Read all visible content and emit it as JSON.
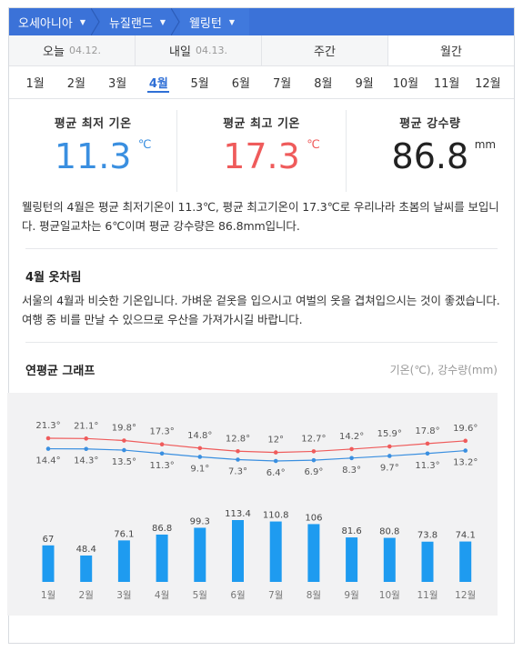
{
  "breadcrumb": [
    "오세아니아",
    "뉴질랜드",
    "웰링턴"
  ],
  "period_tabs": [
    {
      "label": "오늘",
      "date": "04.12."
    },
    {
      "label": "내일",
      "date": "04.13."
    },
    {
      "label": "주간",
      "date": ""
    },
    {
      "label": "월간",
      "date": ""
    }
  ],
  "months": [
    "1월",
    "2월",
    "3월",
    "4월",
    "5월",
    "6월",
    "7월",
    "8월",
    "9월",
    "10월",
    "11월",
    "12월"
  ],
  "selected_month": "4월",
  "stats": {
    "min": {
      "label": "평균 최저 기온",
      "value": "11.3",
      "unit": "℃"
    },
    "max": {
      "label": "평균 최고 기온",
      "value": "17.3",
      "unit": "℃"
    },
    "rain": {
      "label": "평균 강수량",
      "value": "86.8",
      "unit": "mm"
    }
  },
  "summary": "웰링턴의 4월은 평균 최저기온이 11.3℃, 평균 최고기온이 17.3℃로 우리나라 초봄의 날씨를 보입니다. 평균일교차는 6℃이며 평균 강수량은 86.8mm입니다.",
  "clothing": {
    "title": "4월 옷차림",
    "text": "서울의 4월과 비슷한 기온입니다. 가벼운 겉옷을 입으시고 여벌의 옷을 겹쳐입으시는 것이 좋겠습니다. 여행 중 비를 만날 수 있으므로 우산을 가져가시길 바랍니다."
  },
  "graph": {
    "title": "연평균 그래프",
    "units": "기온(℃), 강수량(mm)"
  },
  "colors": {
    "accent": "#3b72d8",
    "max_line": "#ef5b5b",
    "min_line": "#3a8fe0",
    "bar": "#1e9bf0"
  },
  "chart_data": {
    "type": "line",
    "categories": [
      "1월",
      "2월",
      "3월",
      "4월",
      "5월",
      "6월",
      "7월",
      "8월",
      "9월",
      "10월",
      "11월",
      "12월"
    ],
    "series": [
      {
        "values": [
          21.3,
          21.1,
          19.8,
          17.3,
          14.8,
          12.8,
          12,
          12.7,
          14.2,
          15.9,
          17.8,
          19.6
        ],
        "labels": [
          "21.3°",
          "21.1°",
          "19.8°",
          "17.3°",
          "14.8°",
          "12.8°",
          "12°",
          "12.7°",
          "14.2°",
          "15.9°",
          "17.8°",
          "19.6°"
        ]
      },
      {
        "values": [
          14.4,
          14.3,
          13.5,
          11.3,
          9.1,
          7.3,
          6.4,
          6.9,
          8.3,
          9.7,
          11.3,
          13.2
        ],
        "labels": [
          "14.4°",
          "14.3°",
          "13.5°",
          "11.3°",
          "9.1°",
          "7.3°",
          "6.4°",
          "6.9°",
          "8.3°",
          "9.7°",
          "11.3°",
          "13.2°"
        ]
      },
      {
        "type": "bar",
        "values": [
          67,
          48.4,
          76.1,
          86.8,
          99.3,
          113.4,
          110.8,
          106,
          81.6,
          80.8,
          73.8,
          74.1
        ]
      }
    ]
  }
}
